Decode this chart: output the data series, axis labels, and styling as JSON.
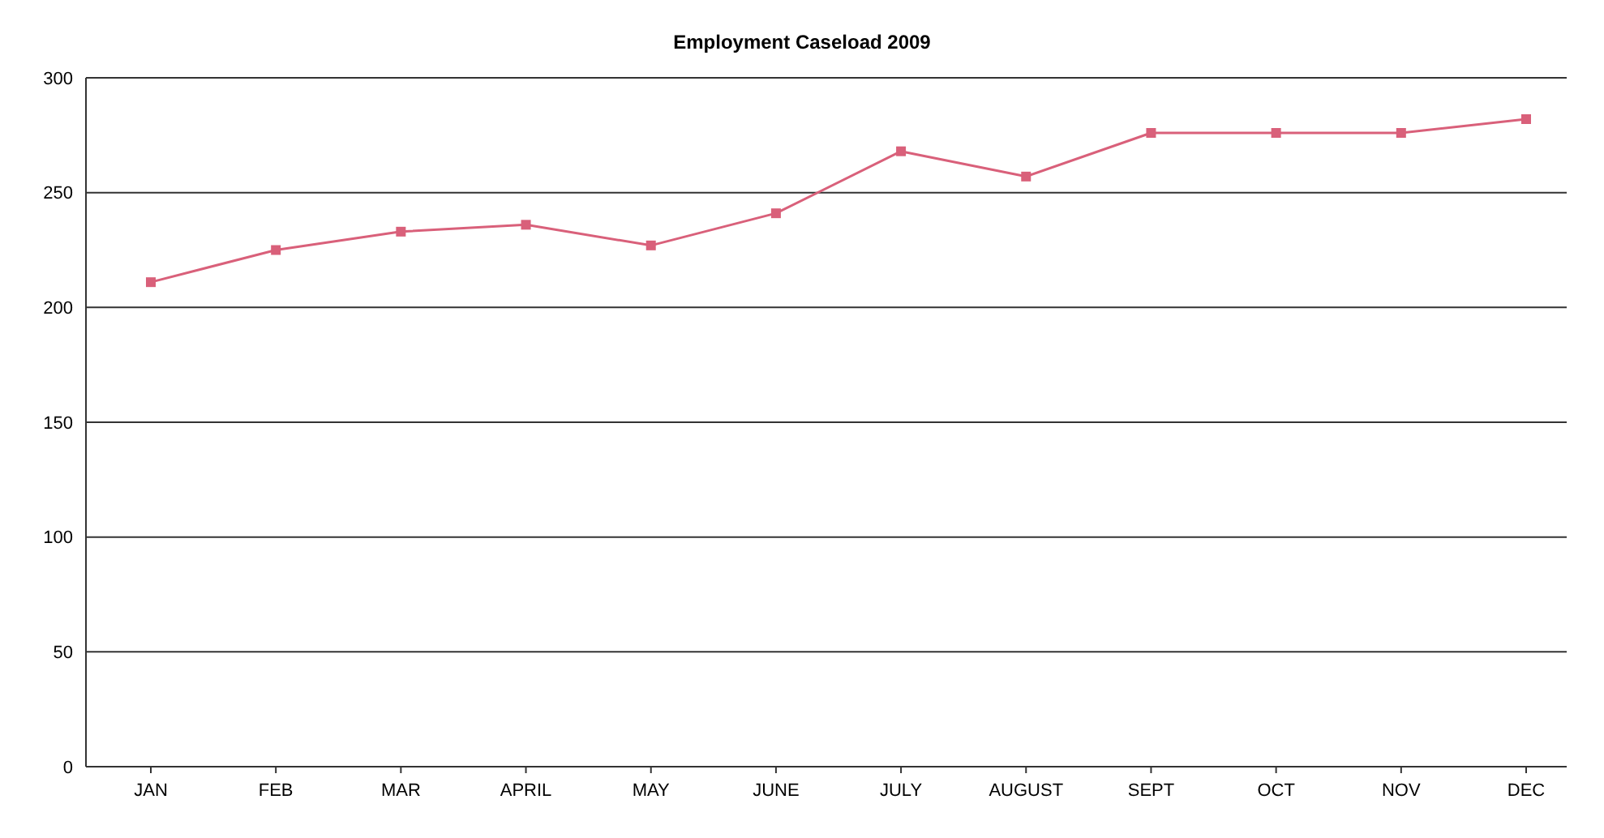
{
  "chart_data": {
    "type": "line",
    "title": "Employment Caseload 2009",
    "categories": [
      "JAN",
      "FEB",
      "MAR",
      "APRIL",
      "MAY",
      "JUNE",
      "JULY",
      "AUGUST",
      "SEPT",
      "OCT",
      "NOV",
      "DEC"
    ],
    "series": [
      {
        "color": "#d9607a",
        "values": [
          211,
          225,
          233,
          236,
          227,
          241,
          268,
          257,
          276,
          276,
          276,
          282
        ]
      }
    ],
    "ylim": [
      0,
      300
    ],
    "yticks": [
      0,
      50,
      100,
      150,
      200,
      250,
      300
    ],
    "grid": "y",
    "marker": "square",
    "line_style": "solid"
  }
}
